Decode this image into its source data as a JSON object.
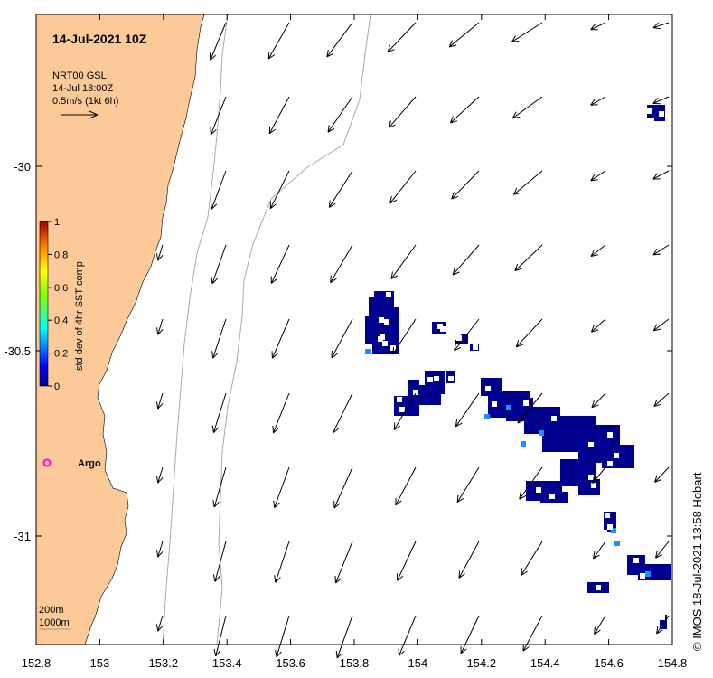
{
  "title": "14-Jul-2021 10Z",
  "legend": {
    "line1": "NRT00 GSL",
    "line2": "14-Jul 18:00Z",
    "line3": "0.5m/s (1kt 6h)"
  },
  "colorbar": {
    "label": "std dev of 4hr SST comp",
    "ticks": [
      "1",
      "0.8",
      "0.6",
      "0.4",
      "0.2",
      "0"
    ]
  },
  "argo_label": "Argo",
  "contour_legend": [
    "200m",
    "1000m"
  ],
  "credit": "© IMOS 18-Jul-2021 13:58 Hobart",
  "x_ticks": [
    "152.8",
    "153",
    "153.2",
    "153.4",
    "153.6",
    "153.8",
    "154",
    "154.2",
    "154.4",
    "154.6",
    "154.8"
  ],
  "y_ticks": [
    "-30",
    "-30.5",
    "-31"
  ],
  "colors": {
    "land": "#fcca98",
    "low_sst_std": "#00008f",
    "mid_sst_std": "#1a8fff",
    "contour": "#aaaaaa",
    "argo": "#ff00ff"
  }
}
